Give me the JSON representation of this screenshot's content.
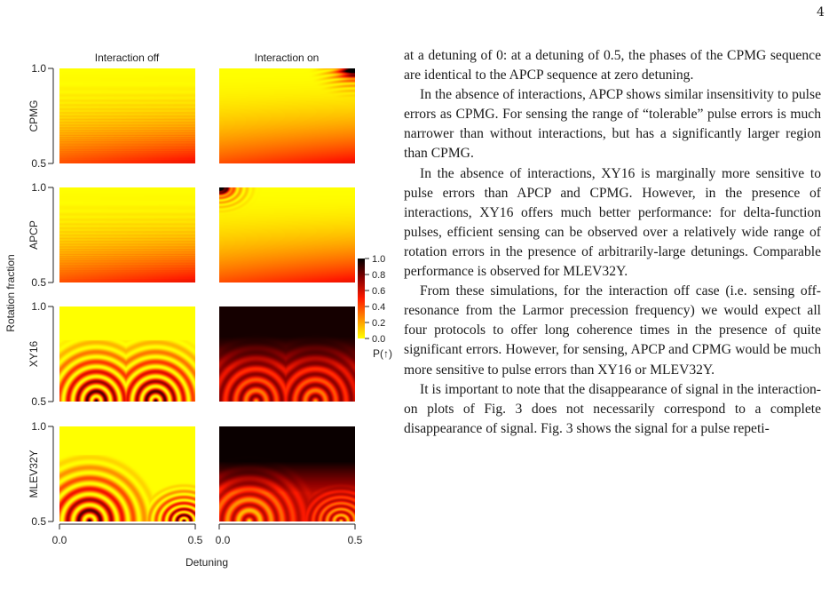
{
  "page_number": "4",
  "figure": {
    "col_titles": [
      "Interaction off",
      "Interaction on"
    ],
    "row_labels": [
      "CPMG",
      "APCP",
      "XY16",
      "MLEV32Y"
    ],
    "ylabel": "Rotation fraction",
    "xlabel": "Detuning",
    "y_ticks": [
      "1.0",
      "0.5"
    ],
    "x_ticks_left": [
      "0.0",
      "0.5"
    ],
    "x_ticks_right": [
      "0.0",
      "0.5"
    ],
    "colorbar_ticks": [
      "1.0",
      "0.8",
      "0.6",
      "0.4",
      "0.2",
      "0.0"
    ],
    "colorbar_label": "P(↑)",
    "colorbar_colors": [
      "#000000",
      "#8b0000",
      "#ff1a00",
      "#ff8c00",
      "#ffff00"
    ]
  },
  "chart_data": {
    "type": "heatmap",
    "panels": [
      {
        "row": "CPMG",
        "col": "Interaction off",
        "pattern": "fringes-bottom"
      },
      {
        "row": "CPMG",
        "col": "Interaction on",
        "pattern": "fringes-corner-top-right"
      },
      {
        "row": "APCP",
        "col": "Interaction off",
        "pattern": "fringes-bottom"
      },
      {
        "row": "APCP",
        "col": "Interaction on",
        "pattern": "fringes-corner-top-left"
      },
      {
        "row": "XY16",
        "col": "Interaction off",
        "pattern": "arches"
      },
      {
        "row": "XY16",
        "col": "Interaction on",
        "pattern": "arches-dark"
      },
      {
        "row": "MLEV32Y",
        "col": "Interaction off",
        "pattern": "arches-mlev"
      },
      {
        "row": "MLEV32Y",
        "col": "Interaction on",
        "pattern": "arches-mlev-dark"
      }
    ],
    "xlim": [
      0.0,
      0.5
    ],
    "ylim": [
      0.5,
      1.0
    ],
    "xlabel": "Detuning",
    "ylabel": "Rotation fraction",
    "colorbar": {
      "label": "P(↑)",
      "range": [
        0.0,
        1.0
      ]
    }
  },
  "paragraphs": [
    "at a detuning of 0: at a detuning of 0.5, the phases of the CPMG sequence are identical to the APCP sequence at zero detuning.",
    "In the absence of interactions, APCP shows similar insensitivity to pulse errors as CPMG. For sensing the range of “tolerable” pulse errors is much narrower than without interactions, but has a significantly larger region than CPMG.",
    "In the absence of interactions, XY16 is marginally more sensitive to pulse errors than APCP and CPMG. However, in the presence of interactions, XY16 offers much better performance: for delta-function pulses, efficient sensing can be observed over a relatively wide range of rotation errors in the presence of arbitrarily-large detunings. Comparable performance is observed for MLEV32Y.",
    "From these simulations, for the interaction off case (i.e. sensing off-resonance from the Larmor precession frequency) we would expect all four protocols to offer long coherence times in the presence of quite significant errors. However, for sensing, APCP and CPMG would be much more sensitive to pulse errors than XY16 or MLEV32Y.",
    "It is important to note that the disappearance of signal in the interaction-on plots of Fig. 3 does not necessarily correspond to a complete disappearance of signal. Fig. 3 shows the signal for a pulse repeti-"
  ]
}
